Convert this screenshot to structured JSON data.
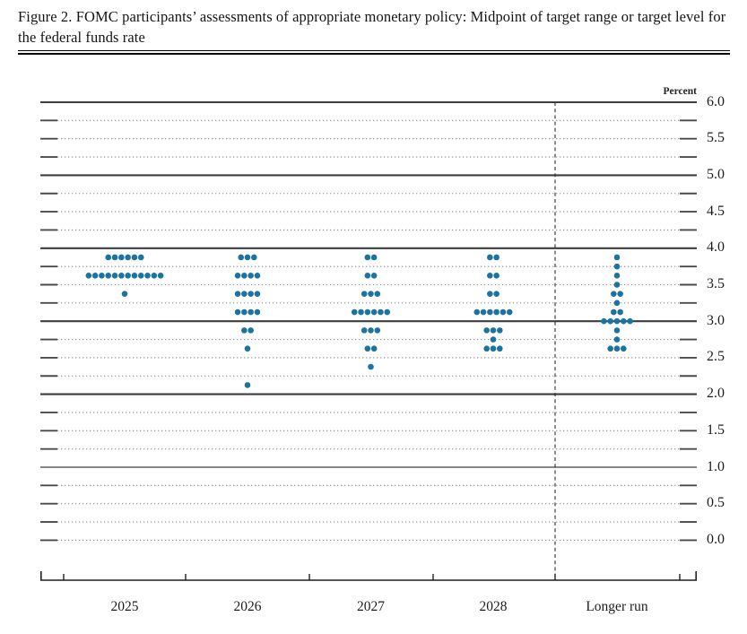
{
  "figure": {
    "title": "Figure 2. FOMC participants’ assessments of appropriate monetary policy: Midpoint of target range or target level for the federal funds rate"
  },
  "chart_data": {
    "type": "scatter",
    "subtype": "fomc-dot-plot",
    "unit_label": "Percent",
    "ylim": [
      0.0,
      6.0
    ],
    "y_tick_step": 0.25,
    "y_label_step": 0.5,
    "y_solid_levels": [
      1.0,
      2.0,
      3.0,
      4.0,
      5.0,
      6.0
    ],
    "y_axis_labels": [
      "6.0",
      "5.5",
      "5.0",
      "4.5",
      "4.0",
      "3.5",
      "3.0",
      "2.5",
      "2.0",
      "1.5",
      "1.0",
      "0.5",
      "0.0"
    ],
    "categories": [
      "2025",
      "2026",
      "2027",
      "2028",
      "Longer run"
    ],
    "separator_before_category": "Longer run",
    "dot_color": "#1b74a0",
    "legend_position": "none",
    "grid": "dotted-quarters-solid-integers",
    "series": [
      {
        "category": "2025",
        "dots": [
          {
            "rate": 3.875,
            "count": 6
          },
          {
            "rate": 3.625,
            "count": 12
          },
          {
            "rate": 3.375,
            "count": 1
          }
        ]
      },
      {
        "category": "2026",
        "dots": [
          {
            "rate": 3.875,
            "count": 3
          },
          {
            "rate": 3.625,
            "count": 4
          },
          {
            "rate": 3.375,
            "count": 4
          },
          {
            "rate": 3.125,
            "count": 4
          },
          {
            "rate": 2.875,
            "count": 2
          },
          {
            "rate": 2.625,
            "count": 1
          },
          {
            "rate": 2.125,
            "count": 1
          }
        ]
      },
      {
        "category": "2027",
        "dots": [
          {
            "rate": 3.875,
            "count": 2
          },
          {
            "rate": 3.625,
            "count": 2
          },
          {
            "rate": 3.375,
            "count": 3
          },
          {
            "rate": 3.125,
            "count": 6
          },
          {
            "rate": 2.875,
            "count": 3
          },
          {
            "rate": 2.625,
            "count": 2
          },
          {
            "rate": 2.375,
            "count": 1
          }
        ]
      },
      {
        "category": "2028",
        "dots": [
          {
            "rate": 3.875,
            "count": 2
          },
          {
            "rate": 3.625,
            "count": 2
          },
          {
            "rate": 3.375,
            "count": 2
          },
          {
            "rate": 3.125,
            "count": 6
          },
          {
            "rate": 2.875,
            "count": 3
          },
          {
            "rate": 2.75,
            "count": 1
          },
          {
            "rate": 2.625,
            "count": 3
          }
        ]
      },
      {
        "category": "Longer run",
        "dots": [
          {
            "rate": 3.875,
            "count": 1
          },
          {
            "rate": 3.75,
            "count": 1
          },
          {
            "rate": 3.625,
            "count": 1
          },
          {
            "rate": 3.5,
            "count": 1
          },
          {
            "rate": 3.375,
            "count": 2
          },
          {
            "rate": 3.25,
            "count": 1
          },
          {
            "rate": 3.125,
            "count": 2
          },
          {
            "rate": 3.0,
            "count": 5
          },
          {
            "rate": 2.875,
            "count": 1
          },
          {
            "rate": 2.75,
            "count": 1
          },
          {
            "rate": 2.625,
            "count": 3
          }
        ]
      }
    ]
  }
}
